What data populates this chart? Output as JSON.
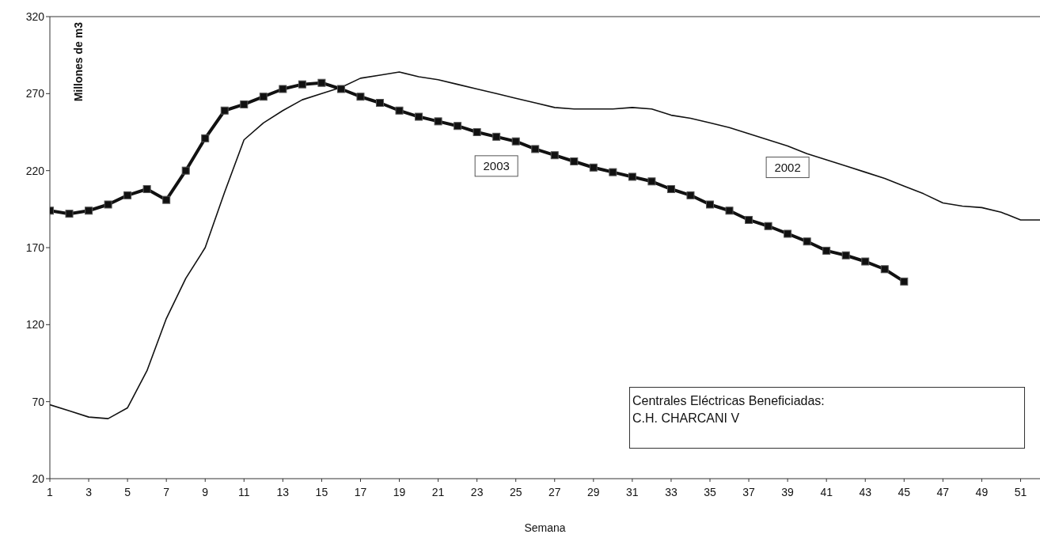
{
  "chart_data": {
    "type": "line",
    "xlabel": "Semana",
    "ylabel": "Millones de m3",
    "x": [
      1,
      2,
      3,
      4,
      5,
      6,
      7,
      8,
      9,
      10,
      11,
      12,
      13,
      14,
      15,
      16,
      17,
      18,
      19,
      20,
      21,
      22,
      23,
      24,
      25,
      26,
      27,
      28,
      29,
      30,
      31,
      32,
      33,
      34,
      35,
      36,
      37,
      38,
      39,
      40,
      41,
      42,
      43,
      44,
      45,
      46,
      47,
      48,
      49,
      50,
      51,
      52
    ],
    "series": [
      {
        "name": "2003",
        "color": "#111111",
        "marker": "square",
        "values": [
          194,
          192,
          194,
          198,
          204,
          208,
          201,
          220,
          241,
          259,
          263,
          268,
          273,
          276,
          277,
          273,
          268,
          264,
          259,
          255,
          252,
          249,
          245,
          242,
          239,
          234,
          230,
          226,
          222,
          219,
          216,
          213,
          208,
          204,
          198,
          194,
          188,
          184,
          179,
          174,
          168,
          165,
          161,
          156,
          148,
          null,
          null,
          null,
          null,
          null,
          null,
          null
        ]
      },
      {
        "name": "2002",
        "color": "#111111",
        "marker": "none",
        "values": [
          68,
          64,
          60,
          59,
          66,
          90,
          124,
          150,
          170,
          206,
          240,
          251,
          259,
          266,
          270,
          274,
          280,
          282,
          284,
          281,
          279,
          276,
          273,
          270,
          267,
          264,
          261,
          260,
          260,
          260,
          261,
          260,
          256,
          254,
          251,
          248,
          244,
          240,
          236,
          231,
          227,
          223,
          219,
          215,
          210,
          205,
          199,
          197,
          196,
          193,
          188,
          188
        ]
      }
    ],
    "xlim": [
      1,
      52
    ],
    "xticks": [
      1,
      3,
      5,
      7,
      9,
      11,
      13,
      15,
      17,
      19,
      21,
      23,
      25,
      27,
      29,
      31,
      33,
      35,
      37,
      39,
      41,
      43,
      45,
      47,
      49,
      51
    ],
    "ylim": [
      20,
      320
    ],
    "yticks": [
      20,
      70,
      120,
      170,
      220,
      270,
      320
    ],
    "grid": false,
    "legend": false,
    "annotations": [
      "Centrales Eléctricas Beneficiadas:",
      "C.H. CHARCANI V"
    ]
  }
}
